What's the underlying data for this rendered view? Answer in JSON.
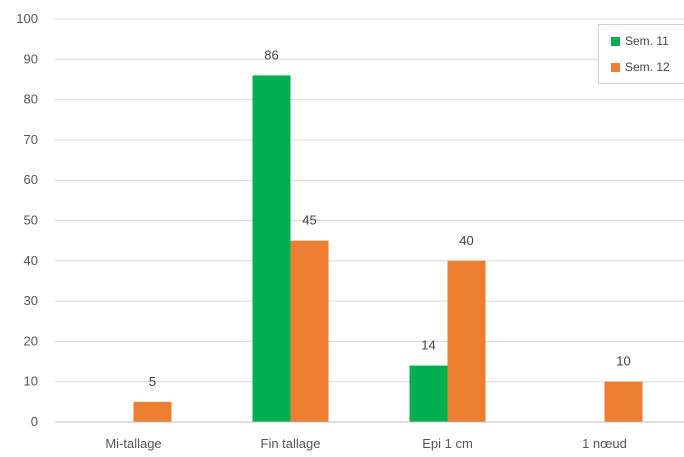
{
  "chart_data": {
    "type": "bar",
    "categories": [
      "Mi-tallage",
      "Fin tallage",
      "Epi 1 cm",
      "1 nœud"
    ],
    "series": [
      {
        "name": "Sem. 11",
        "color": "#00b050",
        "values": [
          null,
          86,
          14,
          null
        ]
      },
      {
        "name": "Sem. 12",
        "color": "#ed7d31",
        "values": [
          5,
          45,
          40,
          10
        ]
      }
    ],
    "ylim": [
      0,
      100
    ],
    "yticks": [
      "0",
      "10",
      "20",
      "30",
      "40",
      "50",
      "60",
      "70",
      "80",
      "90",
      "100"
    ],
    "grid": true,
    "legend": "top-right"
  }
}
